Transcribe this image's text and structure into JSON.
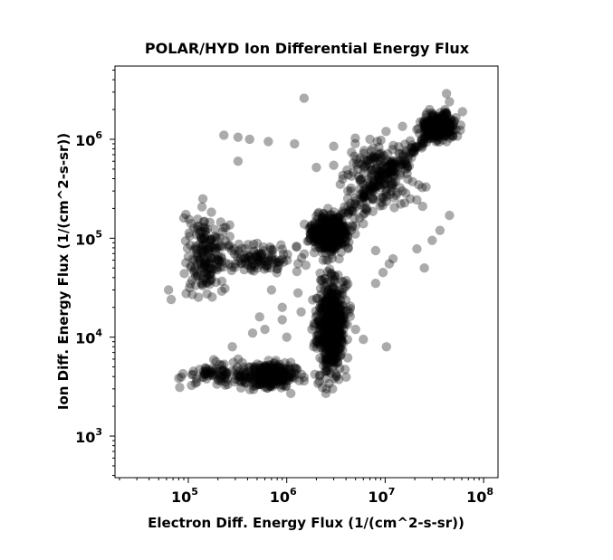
{
  "chart_data": {
    "type": "scatter",
    "title": "POLAR/HYD  Ion Differential Energy Flux",
    "xlabel": "Electron Diff. Energy Flux (1/(cm^2-s-sr))",
    "ylabel": "Ion Diff. Energy Flux (1/(cm^2-s-sr))",
    "xscale": "log",
    "yscale": "log",
    "xlim": [
      18000,
      140000000
    ],
    "ylim": [
      380,
      5500000
    ],
    "x_ticks": [
      {
        "base": "10",
        "exp": "5",
        "value": 100000
      },
      {
        "base": "10",
        "exp": "6",
        "value": 1000000
      },
      {
        "base": "10",
        "exp": "7",
        "value": 10000000
      },
      {
        "base": "10",
        "exp": "8",
        "value": 100000000
      }
    ],
    "y_ticks": [
      {
        "base": "10",
        "exp": "3",
        "value": 1000
      },
      {
        "base": "10",
        "exp": "4",
        "value": 10000
      },
      {
        "base": "10",
        "exp": "5",
        "value": 100000
      },
      {
        "base": "10",
        "exp": "6",
        "value": 1000000
      }
    ],
    "marker_color": "#000000",
    "marker_alpha": 0.33,
    "grid": false,
    "legend": "none",
    "clusters": [
      {
        "x_range": [
          300000,
          1500000
        ],
        "y_range": [
          2800,
          6000
        ],
        "points": 260
      },
      {
        "x_range": [
          1800000,
          4500000
        ],
        "y_range": [
          3000,
          60000
        ],
        "points": 520
      },
      {
        "x_range": [
          1500000,
          5000000
        ],
        "y_range": [
          60000,
          200000
        ],
        "points": 380
      },
      {
        "x_range": [
          20000000,
          60000000
        ],
        "y_range": [
          900000,
          2000000
        ],
        "points": 260
      },
      {
        "x_range": [
          3000000,
          25000000
        ],
        "y_range": [
          150000,
          1200000
        ],
        "points": 200
      },
      {
        "x_range": [
          80000,
          300000
        ],
        "y_range": [
          20000,
          250000
        ],
        "points": 180
      },
      {
        "x_range": [
          150000,
          2000000
        ],
        "y_range": [
          40000,
          100000
        ],
        "points": 110
      },
      {
        "x_range": [
          80000,
          600000
        ],
        "y_range": [
          3000,
          6000
        ],
        "points": 90
      }
    ],
    "points": [
      [
        42000000,
        2900000
      ],
      [
        61000000,
        1900000
      ],
      [
        45000000,
        2400000
      ],
      [
        15000000,
        1350000
      ],
      [
        7000000,
        1000000
      ],
      [
        3000000,
        850000
      ],
      [
        1200000,
        900000
      ],
      [
        320000,
        1050000
      ],
      [
        420000,
        1000000
      ],
      [
        650000,
        950000
      ],
      [
        63000,
        30000
      ],
      [
        67000,
        24000
      ],
      [
        90000,
        160000
      ],
      [
        100000,
        65000
      ],
      [
        230000,
        1100000
      ],
      [
        320000,
        600000
      ],
      [
        2000000,
        520000
      ],
      [
        3500000,
        350000
      ],
      [
        26000000,
        330000
      ],
      [
        15000000,
        300000
      ],
      [
        45000000,
        170000
      ],
      [
        36000000,
        120000
      ],
      [
        30000000,
        95000
      ],
      [
        21000000,
        78000
      ],
      [
        12000000,
        62000
      ],
      [
        8000000,
        75000
      ],
      [
        11000000,
        55000
      ],
      [
        25000000,
        50000
      ],
      [
        9500000,
        45000
      ],
      [
        8000000,
        35000
      ],
      [
        10300000,
        8000
      ],
      [
        6000000,
        9500
      ],
      [
        5000000,
        12000
      ],
      [
        1400000,
        18000
      ],
      [
        900000,
        15000
      ],
      [
        530000,
        16000
      ],
      [
        600000,
        12000
      ],
      [
        1000000,
        10000
      ],
      [
        280000,
        8000
      ],
      [
        450000,
        11000
      ],
      [
        1500000,
        2600000
      ],
      [
        900000,
        20000
      ],
      [
        1300000,
        28000
      ],
      [
        700000,
        30000
      ],
      [
        1100000,
        2700
      ],
      [
        2500000,
        2700
      ],
      [
        18000000,
        250000
      ],
      [
        24000000,
        210000
      ],
      [
        6000000,
        140000
      ],
      [
        5500000,
        160000
      ],
      [
        2300000,
        3100
      ],
      [
        2700000,
        3400
      ]
    ]
  }
}
